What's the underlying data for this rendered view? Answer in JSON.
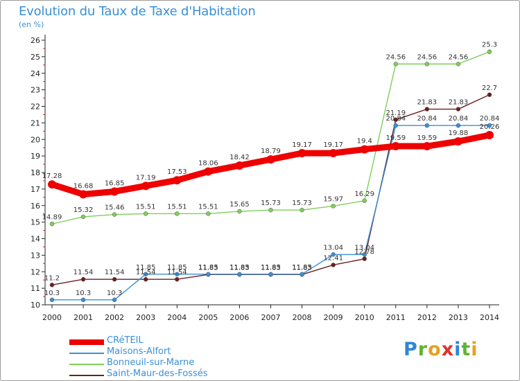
{
  "title": "Evolution du Taux de Taxe d'Habitation",
  "subtitle": "(en %)",
  "logo": {
    "text": "Proxiti",
    "letters": [
      "P",
      "r",
      "o",
      "x",
      "i",
      "t",
      "i"
    ]
  },
  "chart_data": {
    "type": "line",
    "title": "Evolution du Taux de Taxe d'Habitation",
    "ylabel": "(en %)",
    "xlabel": "",
    "ylim": [
      10,
      26
    ],
    "yticks": [
      10,
      11,
      12,
      13,
      14,
      15,
      16,
      17,
      18,
      19,
      20,
      21,
      22,
      23,
      24,
      25,
      26
    ],
    "grid": false,
    "legend_position": "bottom-left",
    "categories": [
      "2000",
      "2001",
      "2002",
      "2003",
      "2004",
      "2005",
      "2006",
      "2007",
      "2008",
      "2009",
      "2010",
      "2011",
      "2012",
      "2013",
      "2014"
    ],
    "series": [
      {
        "name": "CRéTEIL",
        "color": "#ee0000",
        "values": [
          17.28,
          16.68,
          16.85,
          17.19,
          17.53,
          18.06,
          18.42,
          18.79,
          19.17,
          19.17,
          19.4,
          19.59,
          19.59,
          19.88,
          20.26
        ],
        "labels": [
          "17.28",
          "16.68",
          "16.85",
          "17.19",
          "17.53",
          "18.06",
          "18.42",
          "18.79",
          "19.17",
          "19.17",
          "19.4",
          "19.59",
          "19.59",
          "19.88",
          "20.26"
        ]
      },
      {
        "name": "Maisons-Alfort",
        "color": "#3a8fd6",
        "values": [
          10.3,
          10.3,
          10.3,
          11.85,
          11.85,
          11.85,
          11.85,
          11.85,
          11.85,
          13.04,
          13.04,
          20.84,
          20.84,
          20.84,
          20.84
        ],
        "labels": [
          "10.3",
          "10.3",
          "10.3",
          "11.85",
          "11.85",
          "11.85",
          "11.85",
          "11.85",
          "11.85",
          "13.04",
          "13.04",
          "20.84",
          "20.84",
          "20.84",
          "20.84"
        ]
      },
      {
        "name": "Bonneuil-sur-Marne",
        "color": "#7fce5a",
        "values": [
          14.89,
          15.32,
          15.46,
          15.51,
          15.51,
          15.51,
          15.65,
          15.73,
          15.73,
          15.97,
          16.29,
          24.56,
          24.56,
          24.56,
          25.3
        ],
        "labels": [
          "14.89",
          "15.32",
          "15.46",
          "15.51",
          "15.51",
          "15.51",
          "15.65",
          "15.73",
          "15.73",
          "15.97",
          "16.29",
          "24.56",
          "24.56",
          "24.56",
          "25.3"
        ]
      },
      {
        "name": "Saint-Maur-des-Fossés",
        "color": "#6b1f1f",
        "values": [
          11.2,
          11.54,
          11.54,
          11.54,
          11.54,
          11.83,
          11.83,
          11.83,
          11.83,
          12.41,
          12.78,
          21.19,
          21.83,
          21.83,
          22.7
        ],
        "labels": [
          "11.2",
          "11.54",
          "11.54",
          "11.54",
          "11.54",
          "11.83",
          "11.83",
          "11.83",
          "11.83",
          "12.41",
          "12.78",
          "21.19",
          "21.83",
          "21.83",
          "22.7"
        ]
      }
    ]
  }
}
